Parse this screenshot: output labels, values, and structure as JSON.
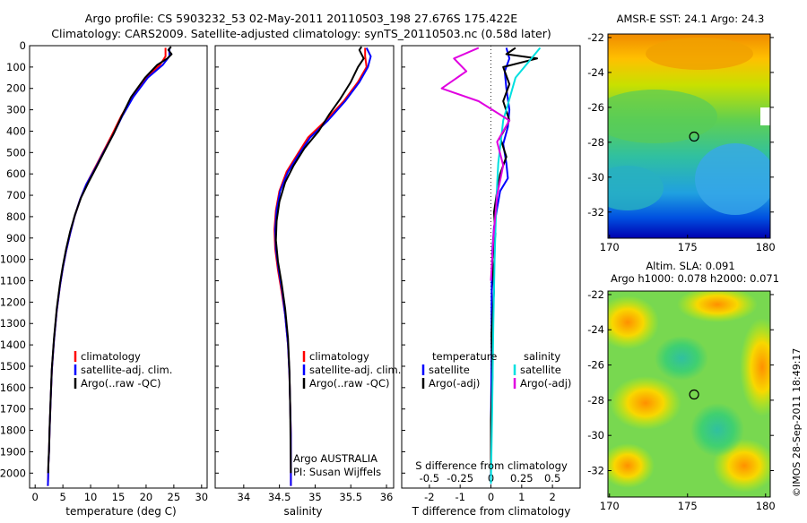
{
  "figure": {
    "title_line1": "Argo profile: CS 5903232_53 02-May-2011 20110503_198 27.676S 175.422E",
    "title_line2": "Climatology: CARS2009. Satellite-adjusted climatology: synTS_20110503.nc (0.58d later)",
    "stamp": "©IMOS 28-Sep-2011 18:49:17",
    "colors": {
      "climatology": "#ff0000",
      "satellite": "#0000ff",
      "argo": "#000000",
      "sat_salinity": "#00e0e0",
      "argo_salinity": "#e000e0"
    }
  },
  "chart_data": [
    {
      "id": "temperature",
      "type": "line",
      "xlabel": "temperature (deg C)",
      "ylabel": "",
      "xlim": [
        -1,
        31
      ],
      "ylim": [
        2070,
        0
      ],
      "xticks": [
        "0",
        "5",
        "10",
        "15",
        "20",
        "25",
        "30"
      ],
      "xtick_values": [
        0,
        5,
        10,
        15,
        20,
        25,
        30
      ],
      "yticks": [
        "0",
        "100",
        "200",
        "300",
        "400",
        "500",
        "600",
        "700",
        "800",
        "900",
        "1000",
        "1100",
        "1200",
        "1300",
        "1400",
        "1500",
        "1600",
        "1700",
        "1800",
        "1900",
        "2000"
      ],
      "ytick_values": [
        0,
        100,
        200,
        300,
        400,
        500,
        600,
        700,
        800,
        900,
        1000,
        1100,
        1200,
        1300,
        1400,
        1500,
        1600,
        1700,
        1800,
        1900,
        2000
      ],
      "legend": [
        "climatology",
        "satellite-adj. clim.",
        "Argo(..raw -QC)"
      ],
      "series": [
        {
          "name": "climatology",
          "color": "#ff0000",
          "x": [
            23.5,
            23.5,
            22.5,
            20,
            17.5,
            15.5,
            13.8,
            12.2,
            10.6,
            9.2,
            8.1,
            7.1,
            6.3,
            5.6,
            5.0,
            4.5,
            3.9,
            3.4,
            3.0,
            2.8,
            2.6,
            2.5,
            2.4,
            2.35,
            2.3
          ],
          "depth": [
            10,
            50,
            90,
            150,
            240,
            330,
            420,
            500,
            580,
            650,
            720,
            800,
            880,
            960,
            1040,
            1120,
            1240,
            1380,
            1520,
            1660,
            1800,
            1900,
            1960,
            2020,
            2060
          ]
        },
        {
          "name": "satellite-adj. clim.",
          "color": "#0000ff",
          "x": [
            24.2,
            24.2,
            23.0,
            20.3,
            17.7,
            15.7,
            14.0,
            12.3,
            10.7,
            9.2,
            8.1,
            7.1,
            6.3,
            5.6,
            5.0,
            4.5,
            3.9,
            3.4,
            3.0,
            2.8,
            2.6,
            2.5,
            2.4,
            2.35,
            2.3
          ],
          "depth": [
            10,
            50,
            90,
            150,
            240,
            330,
            420,
            500,
            580,
            650,
            720,
            800,
            880,
            960,
            1040,
            1120,
            1240,
            1380,
            1520,
            1660,
            1800,
            1900,
            1960,
            2020,
            2060
          ]
        },
        {
          "name": "Argo(..raw -QC)",
          "color": "#000000",
          "x": [
            24.5,
            24.0,
            24.6,
            23.8,
            22.0,
            19.8,
            17.3,
            15.6,
            14.2,
            12.6,
            11.0,
            9.6,
            8.3,
            7.2,
            6.3,
            5.6,
            5.0,
            4.5,
            3.9,
            3.4,
            3.0,
            2.8,
            2.6,
            2.5,
            2.4,
            2.35
          ],
          "depth": [
            5,
            20,
            40,
            60,
            90,
            150,
            240,
            330,
            410,
            490,
            570,
            640,
            710,
            790,
            870,
            950,
            1030,
            1110,
            1230,
            1370,
            1510,
            1650,
            1790,
            1890,
            1950,
            2000
          ]
        }
      ]
    },
    {
      "id": "salinity",
      "type": "line",
      "xlabel": "salinity",
      "ylabel": "",
      "xlim": [
        33.6,
        36.1
      ],
      "ylim": [
        2070,
        0
      ],
      "xticks": [
        "34",
        "34.5",
        "35",
        "35.5",
        "36"
      ],
      "xtick_values": [
        34,
        34.5,
        35,
        35.5,
        36
      ],
      "legend": [
        "climatology",
        "satellite-adj. clim.",
        "Argo(..raw -QC)"
      ],
      "footer_line1": "Argo AUSTRALIA",
      "footer_line2": "PI: Susan Wijffels",
      "series": [
        {
          "name": "climatology",
          "color": "#ff0000",
          "x": [
            35.7,
            35.7,
            35.72,
            35.6,
            35.4,
            35.15,
            34.9,
            34.75,
            34.6,
            34.5,
            34.45,
            34.43,
            34.44,
            34.48,
            34.53,
            34.58,
            34.62,
            34.64,
            34.65,
            34.66,
            34.66,
            34.66
          ],
          "depth": [
            10,
            50,
            100,
            170,
            260,
            350,
            430,
            510,
            590,
            680,
            770,
            860,
            950,
            1050,
            1150,
            1260,
            1400,
            1540,
            1680,
            1820,
            1960,
            2060
          ]
        },
        {
          "name": "satellite-adj. clim.",
          "color": "#0000ff",
          "x": [
            35.72,
            35.78,
            35.74,
            35.62,
            35.42,
            35.18,
            34.93,
            34.77,
            34.62,
            34.51,
            34.46,
            34.44,
            34.45,
            34.49,
            34.54,
            34.58,
            34.62,
            34.64,
            34.65,
            34.66,
            34.66,
            34.66
          ],
          "depth": [
            10,
            50,
            100,
            170,
            260,
            350,
            430,
            510,
            590,
            680,
            770,
            860,
            950,
            1050,
            1150,
            1260,
            1400,
            1540,
            1680,
            1820,
            1960,
            2060
          ]
        },
        {
          "name": "Argo(..raw -QC)",
          "color": "#000000",
          "x": [
            35.65,
            35.62,
            35.68,
            35.6,
            35.5,
            35.35,
            35.2,
            35.05,
            34.85,
            34.7,
            34.58,
            34.5,
            34.46,
            34.45,
            34.48,
            34.53,
            34.58,
            34.62,
            34.64,
            34.65,
            34.66
          ],
          "depth": [
            5,
            20,
            60,
            100,
            170,
            250,
            320,
            400,
            480,
            560,
            640,
            730,
            820,
            910,
            1010,
            1110,
            1230,
            1370,
            1520,
            1680,
            2000
          ]
        }
      ]
    },
    {
      "id": "difference",
      "type": "line",
      "xlabel": "T difference from climatology",
      "ylabel": "",
      "xlabel_top": "S difference from climatology",
      "xlim": [
        -2.9,
        2.9
      ],
      "ylim": [
        2070,
        0
      ],
      "xticks": [
        "-2",
        "-1",
        "0",
        "1",
        "2"
      ],
      "xtick_values": [
        -2,
        -1,
        0,
        1,
        2
      ],
      "s_ticks": [
        "-0.5",
        "-0.25",
        "0",
        "0.25",
        "0.5"
      ],
      "legend_left_title": "temperature",
      "legend_left": [
        "satellite",
        "Argo(-adj)"
      ],
      "legend_right_title": "salinity",
      "legend_right": [
        "satellite",
        "Argo(-adj)"
      ],
      "series": [
        {
          "name": "T satellite",
          "color": "#0000ff",
          "x": [
            0.5,
            0.6,
            0.45,
            0.5,
            0.6,
            0.55,
            0.4,
            0.5,
            0.55,
            0.3,
            0.2,
            0.1,
            0.05,
            0.03,
            0.02,
            0.02,
            0.01,
            0.0,
            0.0
          ],
          "depth": [
            10,
            60,
            120,
            200,
            300,
            380,
            460,
            550,
            620,
            680,
            760,
            850,
            950,
            1080,
            1250,
            1450,
            1650,
            1850,
            2050
          ]
        },
        {
          "name": "T Argo(-adj)",
          "color": "#000000",
          "x": [
            0.8,
            0.5,
            1.5,
            0.4,
            0.6,
            0.4,
            0.6,
            0.3,
            0.5,
            0.3,
            0.2,
            0.1,
            0.15,
            0.05,
            0.1,
            0.02,
            0.05,
            0.0,
            0.0
          ],
          "depth": [
            10,
            40,
            60,
            100,
            180,
            260,
            350,
            430,
            520,
            600,
            680,
            780,
            880,
            1000,
            1150,
            1350,
            1550,
            1750,
            2000
          ]
        },
        {
          "name": "S satellite",
          "color": "#00e0e0",
          "x": [
            0.4,
            0.3,
            0.2,
            0.15,
            0.1,
            0.08,
            0.06,
            0.05,
            0.04,
            0.03,
            0.02,
            0.01,
            0.0
          ],
          "depth": [
            10,
            80,
            150,
            250,
            350,
            450,
            550,
            650,
            800,
            1000,
            1300,
            1700,
            2050
          ]
        },
        {
          "name": "S Argo(-adj)",
          "color": "#e000e0",
          "x": [
            -0.1,
            -0.3,
            -0.2,
            -0.4,
            -0.1,
            0.15,
            0.05,
            0.1,
            0.05,
            0.02,
            0.0
          ],
          "depth": [
            10,
            60,
            120,
            200,
            260,
            350,
            450,
            560,
            700,
            900,
            1100
          ]
        }
      ]
    },
    {
      "id": "sst_map",
      "type": "heatmap",
      "title": "AMSR-E SST: 24.1  Argo: 24.3",
      "xticks": [
        "170",
        "175",
        "180"
      ],
      "xtick_values": [
        170,
        175,
        180
      ],
      "yticks": [
        "-22",
        "-24",
        "-26",
        "-28",
        "-30",
        "-32"
      ],
      "ytick_values": [
        -22,
        -24,
        -26,
        -28,
        -30,
        -32
      ],
      "xlim": [
        169.9,
        180.3
      ],
      "ylim": [
        -33.5,
        -21.8
      ],
      "marker": {
        "lon": 175.422,
        "lat": -27.676
      }
    },
    {
      "id": "sla_map",
      "type": "heatmap",
      "title_line1": "Altim. SLA: 0.091",
      "title_line2": "Argo h1000: 0.078  h2000: 0.071",
      "xticks": [
        "170",
        "175",
        "180"
      ],
      "xtick_values": [
        170,
        175,
        180
      ],
      "yticks": [
        "-22",
        "-24",
        "-26",
        "-28",
        "-30",
        "-32"
      ],
      "ytick_values": [
        -22,
        -24,
        -26,
        -28,
        -30,
        -32
      ],
      "xlim": [
        169.9,
        180.3
      ],
      "ylim": [
        -33.5,
        -21.8
      ],
      "marker": {
        "lon": 175.422,
        "lat": -27.676
      }
    }
  ]
}
